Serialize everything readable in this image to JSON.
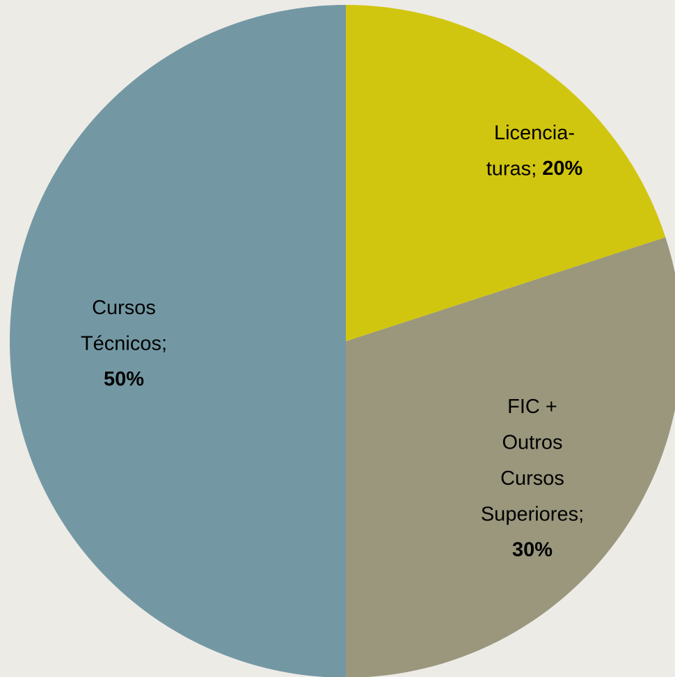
{
  "chart_data": {
    "type": "pie",
    "categories": [
      "Licencia-\nturas",
      "FIC +\nOutros\nCursos\nSuperiores",
      "Cursos\nTécnicos"
    ],
    "values": [
      20,
      30,
      50
    ],
    "value_labels": [
      "20%",
      "30%",
      "50%"
    ],
    "label_separator": ";",
    "colors": [
      "#d1c60f",
      "#9a977d",
      "#7398a4"
    ]
  }
}
